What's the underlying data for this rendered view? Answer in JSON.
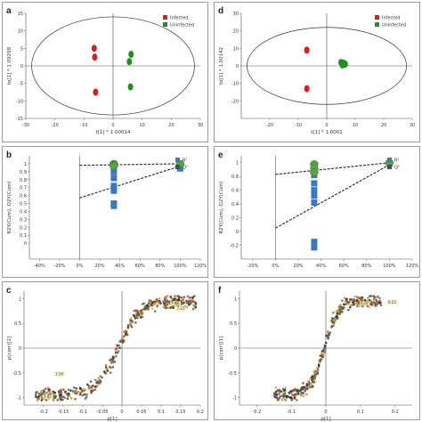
{
  "colors": {
    "infected": "#d42020",
    "uninfected": "#1f8f1f",
    "r2": "#3b78c4",
    "q2": "#5aa14a",
    "ellipse": "#333333"
  },
  "panels": [
    {
      "id": "a",
      "letter": "a",
      "chart_data": {
        "type": "scatter",
        "xlabel": "t[1] * 1.00014",
        "ylabel": "to[1] * 1.09298",
        "xlim": [
          -30,
          30
        ],
        "ylim": [
          -15,
          15
        ],
        "xticks": [
          -30,
          -20,
          -10,
          0,
          10,
          20,
          30
        ],
        "xtick_labels": [
          "-30",
          "-20",
          "-10",
          "0",
          "10",
          "20",
          "30"
        ],
        "yticks": [
          -15,
          -10,
          -5,
          0,
          5,
          10,
          15
        ],
        "ytick_labels": [
          "-15",
          "-10",
          "-5",
          "0",
          "5",
          "10",
          "15"
        ],
        "ellipse": {
          "rx": 28,
          "ry": 14
        },
        "legend": [
          "Infected",
          "Uninfected"
        ],
        "legend_position": "top-right",
        "series": [
          {
            "name": "Infected",
            "points": [
              [
                -6.5,
                5.0
              ],
              [
                -6.3,
                2.5
              ],
              [
                -6.0,
                -7.5
              ]
            ]
          },
          {
            "name": "Uninfected",
            "points": [
              [
                6.2,
                3.3
              ],
              [
                5.6,
                1.2
              ],
              [
                6.0,
                -6.0
              ]
            ]
          }
        ]
      }
    },
    {
      "id": "d",
      "letter": "d",
      "chart_data": {
        "type": "scatter",
        "xlabel": "t[1] * 1.0001",
        "ylabel": "to[1] * 1.00142",
        "xlim": [
          -30,
          30
        ],
        "ylim": [
          -30,
          30
        ],
        "xticks": [
          -20,
          -10,
          0,
          10,
          20,
          30
        ],
        "xtick_labels": [
          "-20",
          "-10",
          "0",
          "10",
          "20",
          "30"
        ],
        "yticks": [
          -20,
          -10,
          0,
          10,
          20,
          30
        ],
        "ytick_labels": [
          "-20",
          "-10",
          "0",
          "10",
          "20",
          "30"
        ],
        "ellipse": {
          "rx": 28,
          "ry": 22
        },
        "legend": [
          "Infected",
          "Uninfected"
        ],
        "legend_position": "top-right",
        "series": [
          {
            "name": "Infected",
            "points": [
              [
                -7,
                9
              ],
              [
                -7,
                -13
              ]
            ]
          },
          {
            "name": "Uninfected",
            "points": [
              [
                5,
                2
              ],
              [
                6,
                1.5
              ],
              [
                5.5,
                0.5
              ],
              [
                6.5,
                1
              ]
            ]
          }
        ]
      }
    },
    {
      "id": "b",
      "letter": "b",
      "chart_data": {
        "type": "scatter",
        "xlabel": "",
        "ylabel": "R2Y(Cum), Q2Y(Cum)",
        "xlim": [
          -50,
          120
        ],
        "ylim": [
          -0.2,
          1.1
        ],
        "xticks": [
          -40,
          -20,
          0,
          20,
          40,
          60,
          80,
          100,
          120
        ],
        "xtick_labels": [
          "-40%",
          "-20%",
          "0%",
          "20%",
          "40%",
          "60%",
          "80%",
          "100%",
          "120%"
        ],
        "yticks": [
          0,
          0.1,
          0.2,
          0.3,
          0.4,
          0.5,
          0.6,
          0.7,
          0.8,
          0.9,
          1
        ],
        "ytick_labels": [
          "0",
          "0.1",
          "0.2",
          "0.3",
          "0.4",
          "0.5",
          "0.6",
          "0.7",
          "0.8",
          "0.9",
          "1"
        ],
        "legend": [
          "R²",
          "Q²"
        ],
        "legend_position": "top-right",
        "series": [
          {
            "name": "R²",
            "points": [
              [
                34,
                0.97
              ],
              [
                34,
                0.9
              ],
              [
                34,
                0.82
              ],
              [
                34,
                0.72
              ],
              [
                34,
                0.66
              ],
              [
                34,
                0.5
              ],
              [
                34,
                0.47
              ],
              [
                100,
                0.94
              ]
            ]
          },
          {
            "name": "Q²",
            "points": [
              [
                34,
                1.0
              ],
              [
                34,
                0.99
              ],
              [
                34,
                0.98
              ],
              [
                34,
                0.97
              ],
              [
                100,
                1.0
              ]
            ]
          }
        ],
        "regression_lines": [
          {
            "series": "R²",
            "from": [
              0,
              0.98
            ],
            "to": [
              100,
              1.0
            ]
          },
          {
            "series": "Q²",
            "from": [
              0,
              0.57
            ],
            "to": [
              100,
              0.97
            ]
          }
        ]
      }
    },
    {
      "id": "e",
      "letter": "e",
      "chart_data": {
        "type": "scatter",
        "xlabel": "",
        "ylabel": "R2Y(Cum), Q2Y(Cum)",
        "xlim": [
          -30,
          120
        ],
        "ylim": [
          -0.4,
          1.1
        ],
        "xticks": [
          -20,
          0,
          20,
          40,
          60,
          80,
          100,
          120
        ],
        "xtick_labels": [
          "-20%",
          "0%",
          "20%",
          "40%",
          "60%",
          "80%",
          "100%",
          "120%"
        ],
        "yticks": [
          -0.2,
          0,
          0.2,
          0.4,
          0.6,
          0.8,
          1
        ],
        "ytick_labels": [
          "-0.2",
          "0",
          "0.2",
          "0.4",
          "0.6",
          "0.8",
          "1"
        ],
        "legend": [
          "R²",
          "Q²"
        ],
        "legend_position": "top-right",
        "series": [
          {
            "name": "R²",
            "points": [
              [
                34,
                0.96
              ],
              [
                34,
                0.9
              ],
              [
                34,
                0.82
              ],
              [
                34,
                0.7
              ],
              [
                34,
                0.6
              ],
              [
                34,
                0.52
              ],
              [
                34,
                0.42
              ],
              [
                34,
                -0.15
              ],
              [
                34,
                -0.23
              ],
              [
                100,
                0.99
              ]
            ]
          },
          {
            "name": "Q²",
            "points": [
              [
                34,
                0.98
              ],
              [
                34,
                0.92
              ],
              [
                34,
                0.86
              ],
              [
                100,
                1.0
              ]
            ]
          }
        ],
        "regression_lines": [
          {
            "series": "R²",
            "from": [
              0,
              0.83
            ],
            "to": [
              100,
              1.0
            ]
          },
          {
            "series": "Q²",
            "from": [
              0,
              0.05
            ],
            "to": [
              100,
              0.97
            ]
          }
        ]
      }
    },
    {
      "id": "c",
      "letter": "c",
      "chart_data": {
        "type": "scatter",
        "xlabel": "p[1]",
        "ylabel": "p(corr)[1]",
        "xlim": [
          -0.25,
          0.2
        ],
        "ylim": [
          -1.15,
          1.15
        ],
        "xticks": [
          -0.2,
          -0.15,
          -0.1,
          -0.05,
          0,
          0.05,
          0.1,
          0.15,
          0.2
        ],
        "xtick_labels": [
          "-0.2",
          "-0.15",
          "-0.1",
          "-0.05",
          "0",
          "0.05",
          "0.1",
          "0.15",
          "0.2"
        ],
        "yticks": [
          -1,
          -0.5,
          0,
          0.5,
          1
        ],
        "ytick_labels": [
          "-1",
          "-0.5",
          "0",
          "0.5",
          "1"
        ],
        "annotations": [
          {
            "text": "7.48",
            "x": 0.125,
            "y": 0.88
          },
          {
            "text": "7.15",
            "x": 0.14,
            "y": 0.77
          },
          {
            "text": "0.85",
            "x": -0.2,
            "y": -1.0
          },
          {
            "text": "1.54",
            "x": -0.17,
            "y": -0.55
          }
        ],
        "series": [
          {
            "name": "",
            "sigmoid": {
              "center": -0.01,
              "scale": 0.055,
              "xmin": -0.22,
              "xmax": 0.19,
              "count": 420
            }
          }
        ]
      }
    },
    {
      "id": "f",
      "letter": "f",
      "chart_data": {
        "type": "scatter",
        "xlabel": "p[1]",
        "ylabel": "p(corr)[1]",
        "xlim": [
          -0.25,
          0.25
        ],
        "ylim": [
          -1.15,
          1.15
        ],
        "xticks": [
          -0.2,
          -0.1,
          0,
          0.1,
          0.2
        ],
        "xtick_labels": [
          "-0.2",
          "-0.1",
          "0",
          "0.1",
          "0.2"
        ],
        "yticks": [
          -1,
          -0.5,
          0,
          0.5,
          1
        ],
        "ytick_labels": [
          "-1",
          "-0.5",
          "0",
          "0.5",
          "1"
        ],
        "annotations": [
          {
            "text": "0.22",
            "x": 0.18,
            "y": 0.9
          },
          {
            "text": "5.72",
            "x": 0.1,
            "y": 0.88
          }
        ],
        "series": [
          {
            "name": "",
            "sigmoid": {
              "center": -0.005,
              "scale": 0.04,
              "xmin": -0.15,
              "xmax": 0.16,
              "count": 360
            }
          }
        ]
      }
    }
  ]
}
